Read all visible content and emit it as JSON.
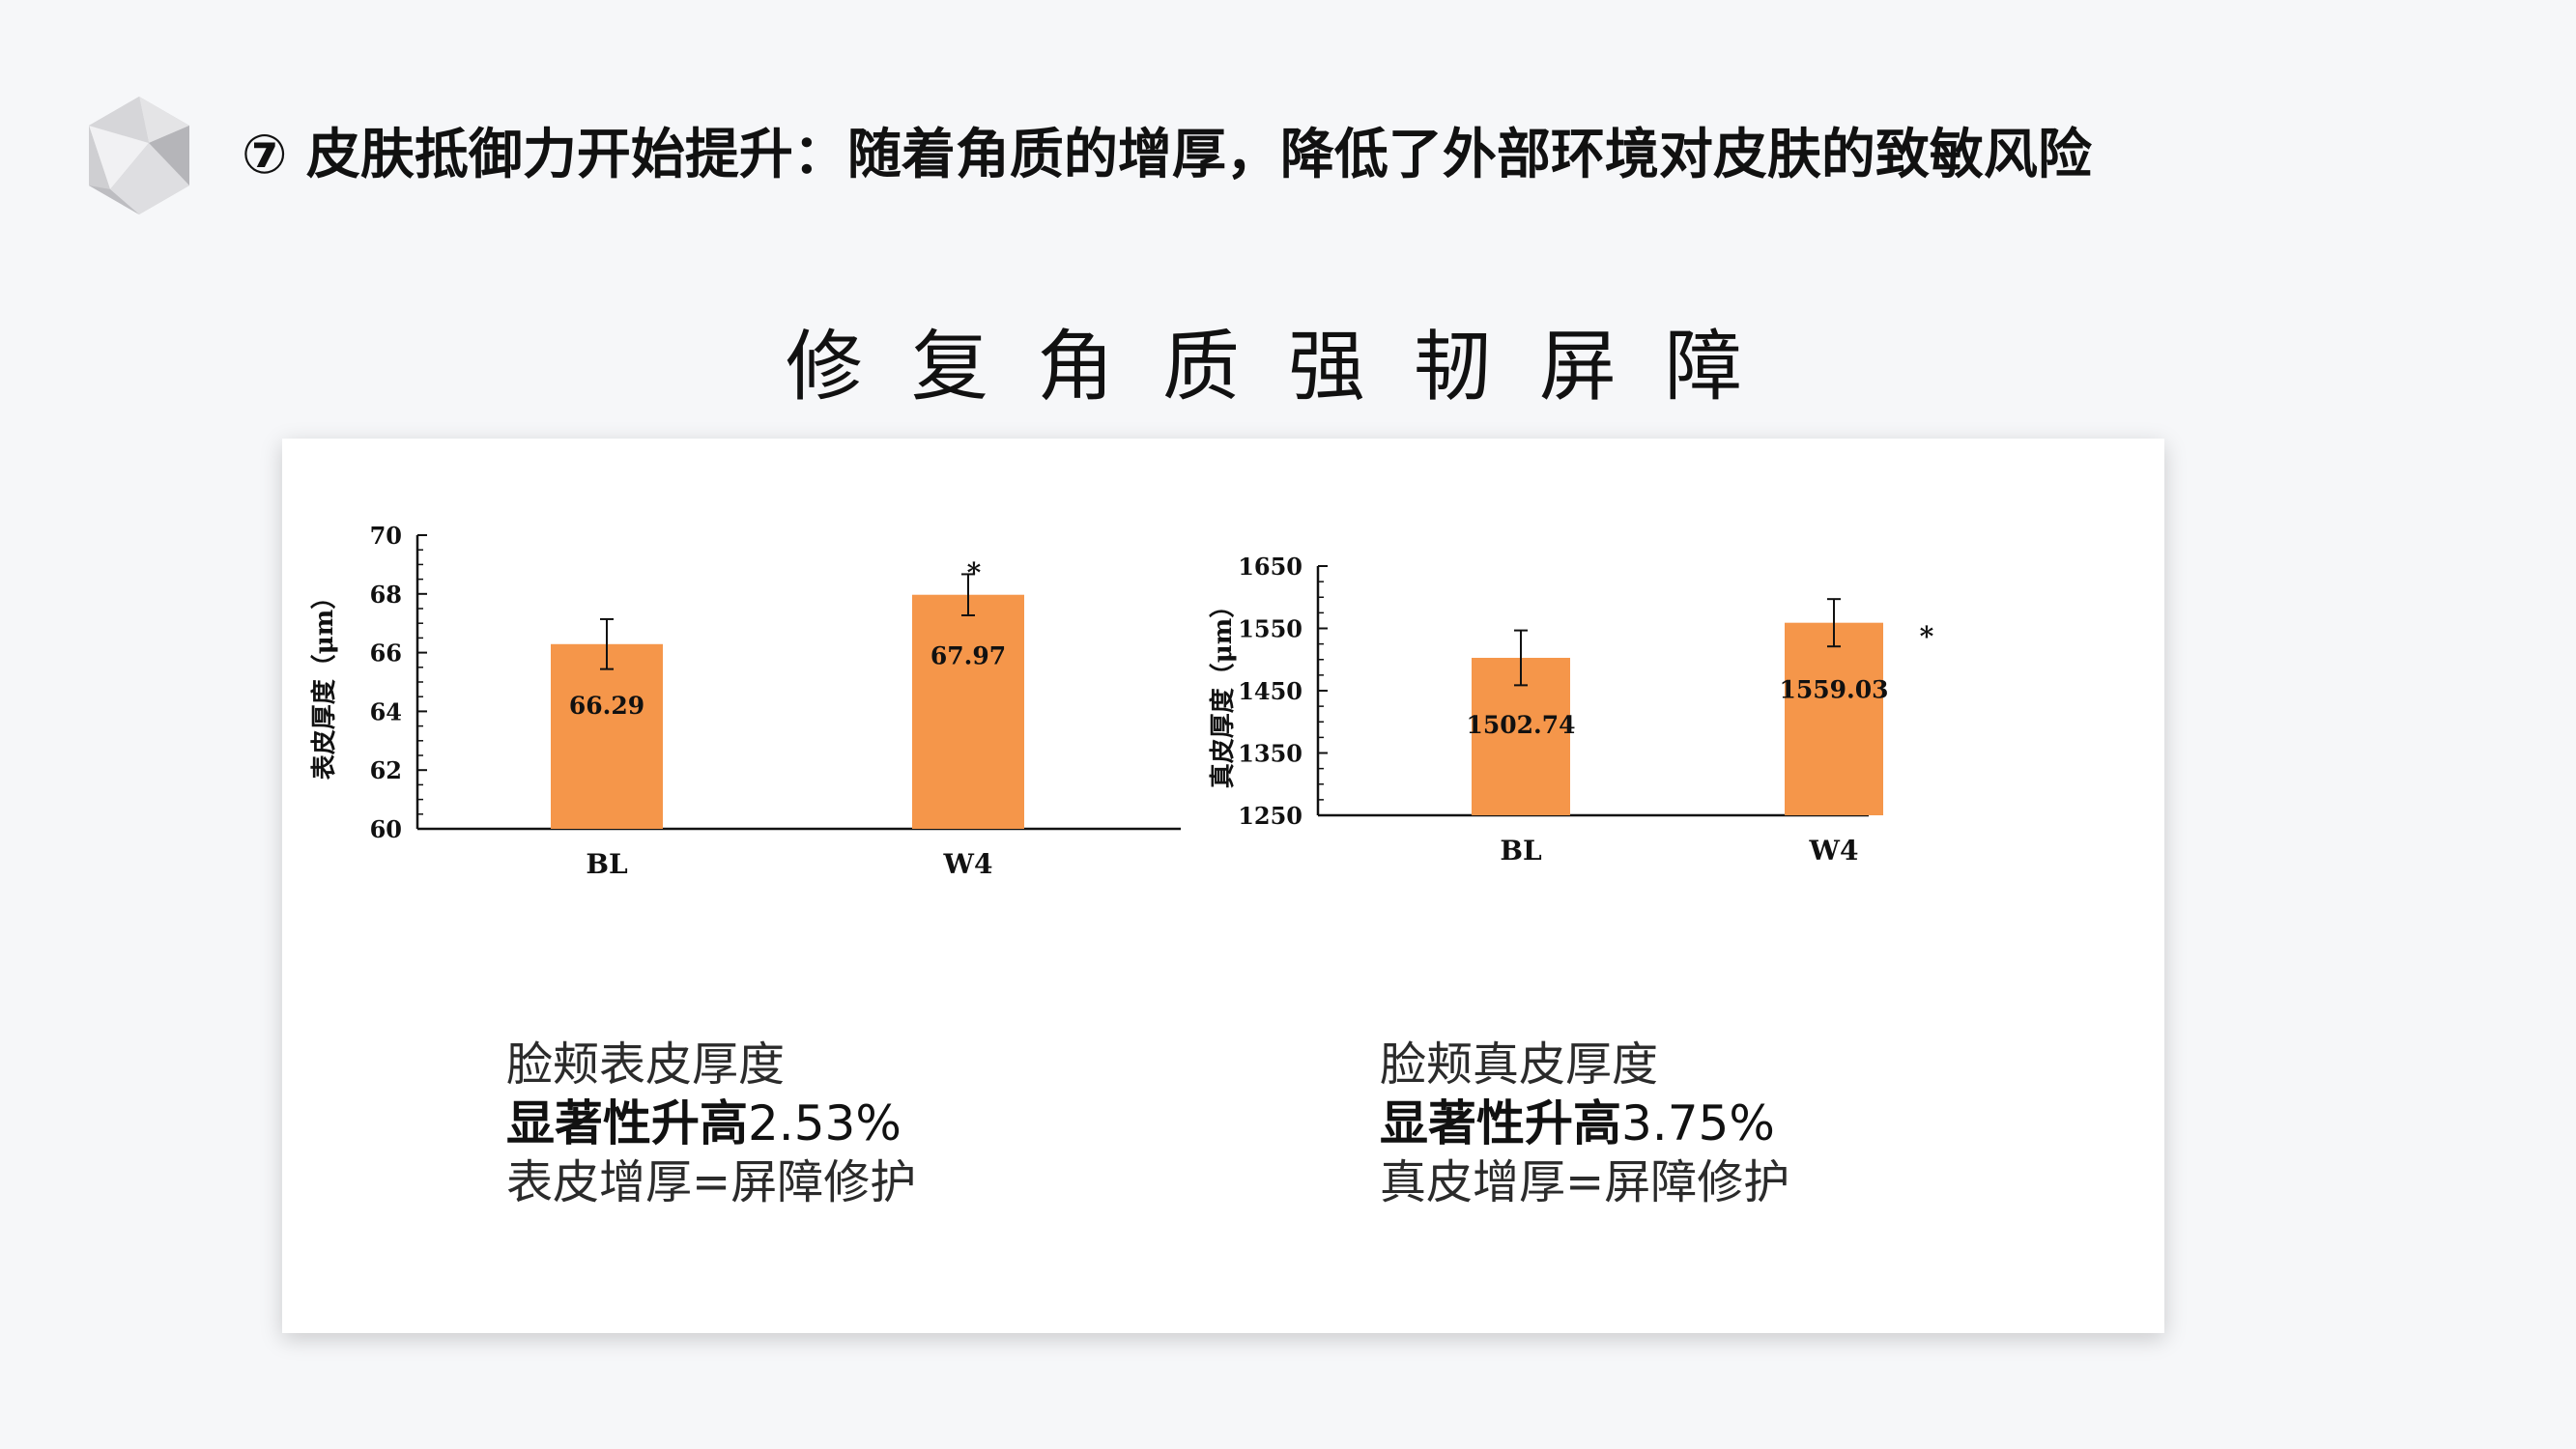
{
  "header": {
    "title": "⑦ 皮肤抵御力开始提升：随着角质的增厚，降低了外部环境对皮肤的致敏风险"
  },
  "main": {
    "title": "修复角质强韧屏障"
  },
  "captions": [
    {
      "line1": "脸颊表皮厚度",
      "line2_bold": "显著性升高",
      "line2_value": "2.53%",
      "line3": "表皮增厚=屏障修护"
    },
    {
      "line1": "脸颊真皮厚度",
      "line2_bold": "显著性升高",
      "line2_value": "3.75%",
      "line3": "真皮增厚=屏障修护"
    }
  ],
  "colors": {
    "bar": "#f5964a",
    "axis": "#111111",
    "card": "#ffffff",
    "background": "#f6f7f9"
  },
  "chart_data": [
    {
      "type": "bar",
      "categories": [
        "BL",
        "W4"
      ],
      "values": [
        66.29,
        67.97
      ],
      "value_labels": [
        "66.29",
        "67.97"
      ],
      "errors": [
        0.85,
        0.7
      ],
      "significance": [
        "",
        "*"
      ],
      "ylabel": "表皮厚度（μm）",
      "ylim": [
        60,
        70
      ],
      "yticks": [
        60,
        62,
        64,
        66,
        68,
        70
      ],
      "legend": "none",
      "grid": false
    },
    {
      "type": "bar",
      "categories": [
        "BL",
        "W4"
      ],
      "values": [
        1502.74,
        1559.03
      ],
      "value_labels": [
        "1502.74",
        "1559.03"
      ],
      "errors": [
        44,
        38
      ],
      "significance": [
        "",
        "*"
      ],
      "ylabel": "真皮厚度（μm）",
      "ylim": [
        1250,
        1650
      ],
      "yticks": [
        1250,
        1350,
        1450,
        1550,
        1650
      ],
      "legend": "none",
      "grid": false
    }
  ]
}
